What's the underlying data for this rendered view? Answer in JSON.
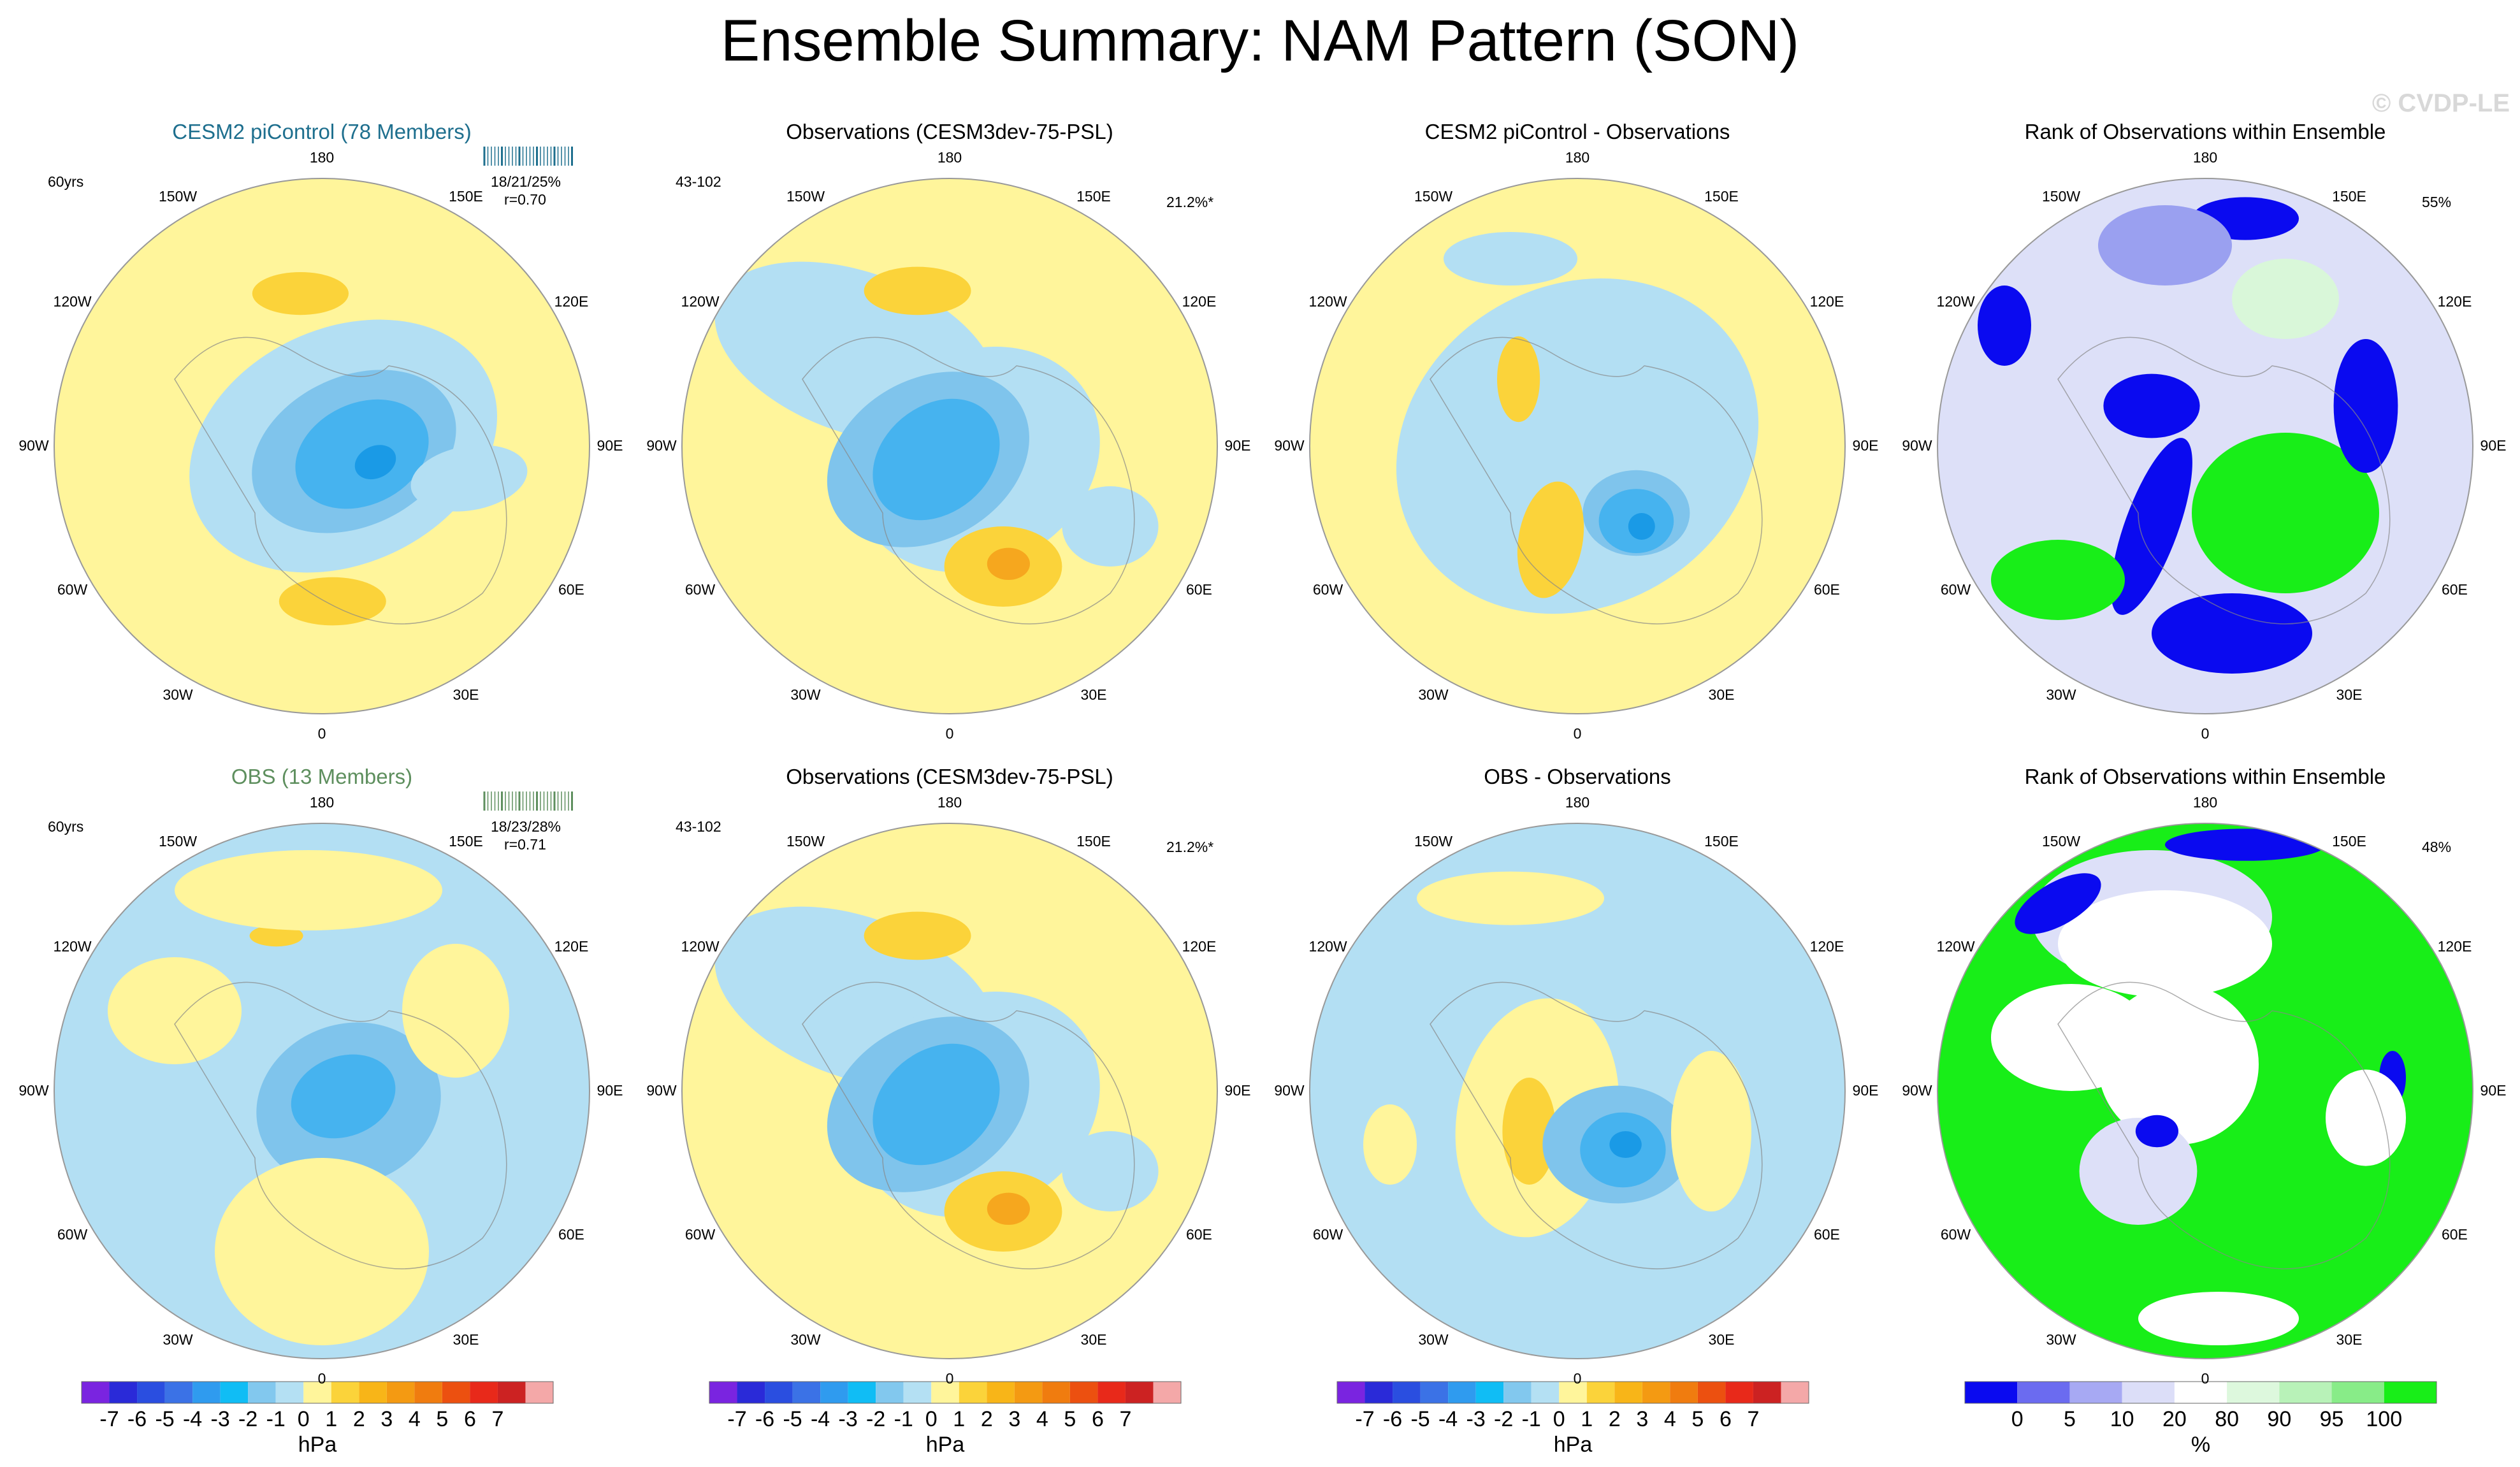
{
  "main_title": "Ensemble Summary: NAM Pattern (SON)",
  "watermark": "© CVDP-LE",
  "colors": {
    "pos1": "#fff59b",
    "pos2": "#fbd33a",
    "pos3": "#f6a71e",
    "pos4": "#f07c0f",
    "neg1": "#b3dff3",
    "neg2": "#7fc4ec",
    "neg3": "#46b3ef",
    "neg4": "#1a9ae6",
    "rank_low": "#0a0af0",
    "rank_mid": "#9aa0f0",
    "rank_pale": "#dde0f8",
    "rank_high": "#18ee18",
    "rank_hpale": "#d9f7d9"
  },
  "lon_labels": [
    "180",
    "150E",
    "120E",
    "90E",
    "60E",
    "30E",
    "0",
    "30W",
    "60W",
    "90W",
    "120W",
    "150W"
  ],
  "panels": [
    {
      "title": "CESM2 piControl (78 Members)",
      "title_color": "#1e6f8e",
      "left_label": "60yrs",
      "stats": "18/21/25%",
      "corr": "r=0.70",
      "right_label": ""
    },
    {
      "title": "Observations (CESM3dev-75-PSL)",
      "title_color": "#000000",
      "left_label": "43-102",
      "stats": "",
      "corr": "",
      "right_label": "21.2%*"
    },
    {
      "title": "CESM2 piControl - Observations",
      "title_color": "#000000",
      "left_label": "",
      "stats": "",
      "corr": "",
      "right_label": ""
    },
    {
      "title": "Rank of Observations within Ensemble",
      "title_color": "#000000",
      "left_label": "",
      "stats": "",
      "corr": "",
      "right_label": "55%"
    },
    {
      "title": "OBS (13 Members)",
      "title_color": "#5e8f5e",
      "left_label": "60yrs",
      "stats": "18/23/28%",
      "corr": "r=0.71",
      "right_label": ""
    },
    {
      "title": "Observations (CESM3dev-75-PSL)",
      "title_color": "#000000",
      "left_label": "43-102",
      "stats": "",
      "corr": "",
      "right_label": "21.2%*"
    },
    {
      "title": "OBS - Observations",
      "title_color": "#000000",
      "left_label": "",
      "stats": "",
      "corr": "",
      "right_label": ""
    },
    {
      "title": "Rank of Observations within Ensemble",
      "title_color": "#000000",
      "left_label": "",
      "stats": "",
      "corr": "",
      "right_label": "48%"
    }
  ],
  "colorbar_hpa": {
    "unit": "hPa",
    "labels": [
      "-7",
      "-6",
      "-5",
      "-4",
      "-3",
      "-2",
      "-1",
      "0",
      "1",
      "2",
      "3",
      "4",
      "5",
      "6",
      "7"
    ],
    "colors": [
      "#7a24e0",
      "#2a2ad8",
      "#2a4ee0",
      "#3b72e6",
      "#2f9bef",
      "#10bdf5",
      "#82c8ee",
      "#b4e0f3",
      "#fff59b",
      "#fbd33a",
      "#f8b518",
      "#f49a12",
      "#f07c0f",
      "#ec5010",
      "#e8291a",
      "#cc2222",
      "#f4a8a8"
    ]
  },
  "colorbar_rank": {
    "unit": "%",
    "labels": [
      "0",
      "5",
      "10",
      "20",
      "80",
      "90",
      "95",
      "100"
    ],
    "colors": [
      "#0a0af0",
      "#6b6bf0",
      "#a7a9f3",
      "#dcdef8",
      "#ffffff",
      "#ddf8dd",
      "#b8f2b8",
      "#88ec88",
      "#18ee18"
    ]
  },
  "chart_data": [
    {
      "type": "heatmap",
      "title": "CESM2 piControl (78 Members)",
      "units": "hPa",
      "projection": "north-polar-stereographic",
      "range": [
        -7,
        7
      ],
      "centers": [
        {
          "name": "Arctic low",
          "value": -4
        },
        {
          "name": "N Pacific high",
          "value": 2
        },
        {
          "name": "Europe high",
          "value": 2
        }
      ]
    },
    {
      "type": "heatmap",
      "title": "Observations (CESM3dev-75-PSL)",
      "units": "hPa",
      "projection": "north-polar-stereographic",
      "range": [
        -7,
        7
      ],
      "centers": [
        {
          "name": "Arctic low",
          "value": -3
        },
        {
          "name": "N Pacific high",
          "value": 2
        },
        {
          "name": "Europe high",
          "value": 4
        }
      ]
    },
    {
      "type": "heatmap",
      "title": "CESM2 piControl - Observations",
      "units": "hPa",
      "projection": "north-polar-stereographic",
      "range": [
        -7,
        7
      ],
      "centers": [
        {
          "name": "Barents low",
          "value": -3
        },
        {
          "name": "Canada high",
          "value": 2
        }
      ]
    },
    {
      "type": "heatmap",
      "title": "Rank of Observations within Ensemble",
      "units": "%",
      "projection": "north-polar-stereographic",
      "range": [
        0,
        100
      ],
      "summary": "55%"
    },
    {
      "type": "heatmap",
      "title": "OBS (13 Members)",
      "units": "hPa",
      "projection": "north-polar-stereographic",
      "range": [
        -7,
        7
      ],
      "centers": [
        {
          "name": "Arctic low",
          "value": -3
        },
        {
          "name": "N Pacific high",
          "value": 2
        }
      ]
    },
    {
      "type": "heatmap",
      "title": "Observations (CESM3dev-75-PSL)",
      "units": "hPa",
      "projection": "north-polar-stereographic",
      "range": [
        -7,
        7
      ],
      "centers": [
        {
          "name": "Arctic low",
          "value": -3
        },
        {
          "name": "N Pacific high",
          "value": 2
        },
        {
          "name": "Europe high",
          "value": 4
        }
      ]
    },
    {
      "type": "heatmap",
      "title": "OBS - Observations",
      "units": "hPa",
      "projection": "north-polar-stereographic",
      "range": [
        -7,
        7
      ],
      "centers": [
        {
          "name": "Barents low",
          "value": -4
        },
        {
          "name": "Canada high",
          "value": 2
        }
      ]
    },
    {
      "type": "heatmap",
      "title": "Rank of Observations within Ensemble",
      "units": "%",
      "projection": "north-polar-stereographic",
      "range": [
        0,
        100
      ],
      "summary": "48%"
    }
  ]
}
